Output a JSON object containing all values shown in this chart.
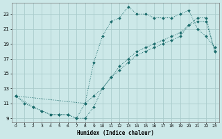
{
  "xlabel": "Humidex (Indice chaleur)",
  "bg_color": "#cce8e8",
  "grid_color": "#aacccc",
  "line_color": "#1a6b6b",
  "series1_x": [
    0,
    1,
    2,
    3,
    4,
    5,
    6,
    7,
    8,
    9,
    10,
    11,
    12,
    13,
    14,
    15,
    16,
    17,
    18,
    19,
    20,
    21,
    22,
    23
  ],
  "series1_y": [
    12,
    11,
    10.5,
    10,
    9.5,
    9.5,
    9.5,
    9,
    11,
    16.5,
    20,
    22,
    22.5,
    24,
    23,
    23,
    22.5,
    22.5,
    22.5,
    23,
    23.5,
    21,
    20,
    18.5
  ],
  "series2_x": [
    0,
    2,
    3,
    4,
    5,
    6,
    7,
    8,
    9,
    10,
    11,
    12,
    13,
    14,
    15,
    16,
    17,
    18,
    19,
    20,
    21,
    22,
    23
  ],
  "series2_y": [
    12,
    10.5,
    10,
    9.5,
    9.5,
    9.5,
    9,
    9,
    10.5,
    13,
    14.5,
    16,
    17,
    18,
    18.5,
    19,
    19.5,
    20,
    20.5,
    21.5,
    22,
    22,
    18
  ],
  "series3_x": [
    0,
    8,
    9,
    10,
    11,
    12,
    13,
    14,
    15,
    16,
    17,
    18,
    19,
    20,
    21,
    22,
    23
  ],
  "series3_y": [
    12,
    11,
    12,
    13,
    14.5,
    15.5,
    16.5,
    17.5,
    18,
    18.5,
    19,
    19.5,
    20,
    21.5,
    22.5,
    22.5,
    18
  ],
  "xmin": -0.5,
  "xmax": 23.5,
  "ymin": 8.5,
  "ymax": 24.5,
  "yticks": [
    9,
    11,
    13,
    15,
    17,
    19,
    21,
    23
  ],
  "xticks": [
    0,
    1,
    2,
    3,
    4,
    5,
    6,
    7,
    8,
    9,
    10,
    11,
    12,
    13,
    14,
    15,
    16,
    17,
    18,
    19,
    20,
    21,
    22,
    23
  ]
}
